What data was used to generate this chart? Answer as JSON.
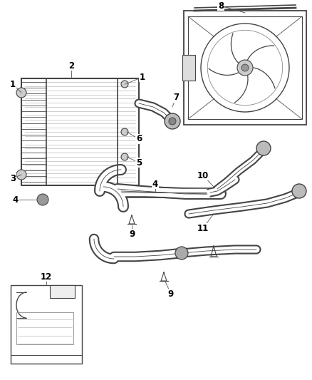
{
  "bg_color": "#ffffff",
  "line_color": "#444444",
  "label_color": "#000000",
  "figsize": [
    4.38,
    5.33
  ],
  "dpi": 100
}
